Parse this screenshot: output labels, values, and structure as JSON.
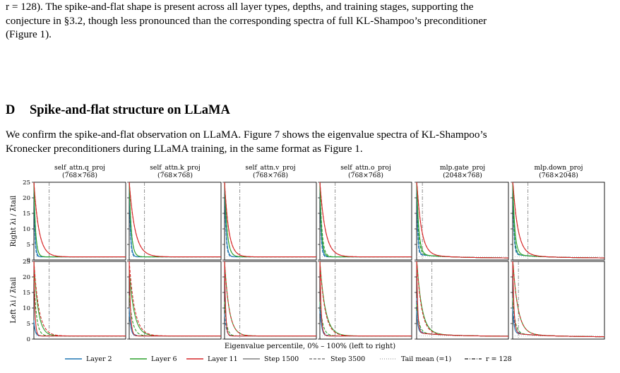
{
  "paragraph1": {
    "line1": "r = 128). The spike-and-flat shape is present across all layer types, depths, and training stages, supporting the",
    "line2": "conjecture in §3.2, though less pronounced than the corresponding spectra of full KL-Shampoo’s preconditioner",
    "line3": "(Figure 1)."
  },
  "section": {
    "number": "D",
    "title": "Spike-and-flat structure on LLaMA"
  },
  "paragraph2": {
    "line1": "We confirm the spike-and-flat observation on LLaMA. Figure 7 shows the eigenvalue spectra of KL-Shampoo’s",
    "line2": "Kronecker preconditioners during LLaMA training, in the same format as Figure 1."
  },
  "chart_data": {
    "type": "line",
    "panels_per_row": 6,
    "columns": [
      {
        "title": "self_attn.q_proj",
        "shape": "(768×768)"
      },
      {
        "title": "self_attn.k_proj",
        "shape": "(768×768)"
      },
      {
        "title": "self_attn.v_proj",
        "shape": "(768×768)"
      },
      {
        "title": "self_attn.o_proj",
        "shape": "(768×768)"
      },
      {
        "title": "mlp.gate_proj",
        "shape": "(2048×768)"
      },
      {
        "title": "mlp.down_proj",
        "shape": "(768×2048)"
      }
    ],
    "rows": [
      {
        "ylabel": "Right λi / λ̄tail"
      },
      {
        "ylabel": "Left λi / λ̄tail"
      }
    ],
    "ylim": [
      0,
      25
    ],
    "yticks": [
      "0",
      "5",
      "10",
      "15",
      "20",
      "25"
    ],
    "xlim": [
      0,
      100
    ],
    "xlabel": "Eigenvalue percentile, 0% – 100% (left to right)",
    "rank_marker_percentile": [
      [
        16.7,
        16.7,
        16.7,
        16.7,
        6.25,
        16.7
      ],
      [
        16.7,
        16.7,
        16.7,
        16.7,
        16.7,
        6.25
      ]
    ],
    "tail_mean": 1,
    "series_styles": {
      "layers": [
        {
          "name": "Layer 2",
          "color": "#1f77b4"
        },
        {
          "name": "Layer 6",
          "color": "#2ca02c"
        },
        {
          "name": "Layer 11",
          "color": "#d62728"
        }
      ],
      "steps": [
        {
          "name": "Step 1500",
          "dash": "solid"
        },
        {
          "name": "Step 3500",
          "dash": "dashed"
        }
      ]
    },
    "spectra_peak_values": {
      "right": [
        [
          25,
          25,
          25,
          25,
          25,
          25
        ],
        [
          25,
          25,
          25,
          25,
          25,
          25
        ],
        [
          25,
          25,
          25,
          25,
          25,
          25
        ],
        [
          25,
          25,
          25,
          25,
          25,
          25
        ],
        [
          25,
          25,
          25,
          25,
          25,
          25
        ],
        [
          25,
          25,
          25,
          25,
          25,
          25
        ]
      ],
      "right_decay": [
        [
          2.5,
          3.0,
          3.5,
          3.0,
          2.5,
          3.0
        ],
        [
          2.0,
          2.5,
          3.0,
          2.5,
          2.0,
          2.5
        ],
        [
          4.0,
          5.0,
          6.0,
          4.0,
          5.0,
          5.0
        ],
        [
          4.0,
          5.0,
          6.0,
          5.0,
          4.0,
          3.5
        ],
        [
          12,
          14,
          10,
          13,
          11,
          12
        ],
        [
          12,
          14,
          10,
          13,
          11,
          12
        ]
      ],
      "left": [
        [
          6,
          10,
          25,
          12,
          8,
          9
        ],
        [
          5,
          8,
          8,
          9,
          12,
          9
        ],
        [
          25,
          22,
          25,
          25,
          25,
          25
        ],
        [
          20,
          14,
          12,
          12,
          10,
          12
        ],
        [
          25,
          25,
          25,
          25,
          25,
          25
        ],
        [
          25,
          25,
          25,
          25,
          25,
          25
        ]
      ],
      "left_decay": [
        [
          3,
          3.5,
          2.5,
          3.5,
          3,
          3
        ],
        [
          4,
          5,
          4,
          5,
          4,
          5
        ],
        [
          10,
          12,
          11,
          13,
          12,
          12
        ],
        [
          6,
          8,
          5,
          7,
          6,
          6
        ],
        [
          2.5,
          3,
          2.5,
          3,
          2.5,
          3
        ],
        [
          12,
          13,
          11,
          12,
          11,
          12
        ]
      ],
      "floor": [
        1,
        1,
        1,
        1,
        0.85,
        0.7
      ],
      "floor_right": [
        1,
        1,
        1,
        1,
        0.6,
        0.6
      ]
    },
    "legend": [
      {
        "label": "Layer 2",
        "kind": "line",
        "color": "#1f77b4",
        "dash": "solid"
      },
      {
        "label": "Layer 6",
        "kind": "line",
        "color": "#2ca02c",
        "dash": "solid"
      },
      {
        "label": "Layer 11",
        "kind": "line",
        "color": "#d62728",
        "dash": "solid"
      },
      {
        "label": "Step 1500",
        "kind": "line",
        "color": "#808080",
        "dash": "solid"
      },
      {
        "label": "Step 3500",
        "kind": "line",
        "color": "#808080",
        "dash": "dashed"
      },
      {
        "label": "Tail mean (=1)",
        "kind": "line",
        "color": "#b0b0b0",
        "dash": "dotted"
      },
      {
        "label": "r = 128",
        "kind": "line",
        "color": "#404040",
        "dash": "dashdot"
      }
    ],
    "legend_placement": "bottom"
  }
}
